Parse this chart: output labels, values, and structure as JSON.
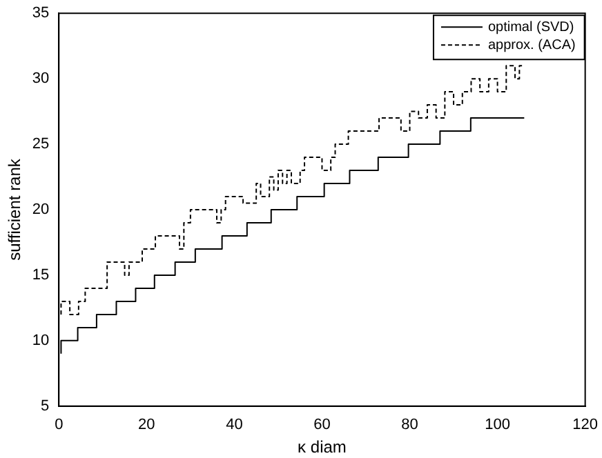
{
  "chart_data": {
    "type": "step",
    "xlabel": "κ diam",
    "ylabel": "sufficient rank",
    "xlim": [
      0,
      120
    ],
    "xticks": [
      0,
      20,
      40,
      60,
      80,
      100,
      120
    ],
    "ylim": [
      5,
      35
    ],
    "yticks": [
      5,
      10,
      15,
      20,
      25,
      30,
      35
    ],
    "legend": "top right",
    "grid": false,
    "series": [
      {
        "name": "optimal (SVD)",
        "color": "#000000",
        "line_style": "solid",
        "x": [
          0.5,
          4.3,
          8.6,
          13.1,
          17.5,
          21.8,
          26.5,
          31.1,
          37.2,
          42.9,
          48.4,
          54.3,
          60.5,
          66.3,
          72.8,
          79.7,
          86.9,
          93.9,
          99.8,
          106.1
        ],
        "values": [
          9,
          10,
          11,
          12,
          13,
          14,
          15,
          16,
          17,
          18,
          19,
          20,
          21,
          22,
          23,
          24,
          25,
          26,
          27,
          27
        ]
      },
      {
        "name": "approx. (ACA)",
        "color": "#000000",
        "line_style": "dashed",
        "x": [
          0.5,
          2.5,
          4.5,
          6,
          11,
          15,
          16,
          19,
          22,
          27.5,
          28.5,
          30,
          36,
          37,
          38,
          42,
          45,
          46,
          48,
          49,
          50,
          51,
          52,
          53,
          55,
          56,
          60,
          62,
          63,
          66,
          73,
          78,
          80,
          82,
          84,
          86,
          88,
          90,
          92,
          94,
          96,
          98,
          100,
          102,
          104,
          105,
          106
        ],
        "values": [
          12,
          13,
          12,
          13,
          14,
          16,
          15,
          16,
          17,
          18,
          17,
          19,
          20,
          19,
          20,
          21,
          20.5,
          22,
          21,
          22.5,
          21.5,
          23,
          22,
          23,
          22,
          23,
          24,
          23,
          24,
          25,
          26,
          27,
          26,
          27.5,
          27,
          28,
          27,
          29,
          28,
          29,
          30,
          29,
          30,
          29,
          31,
          30,
          31
        ]
      }
    ]
  }
}
